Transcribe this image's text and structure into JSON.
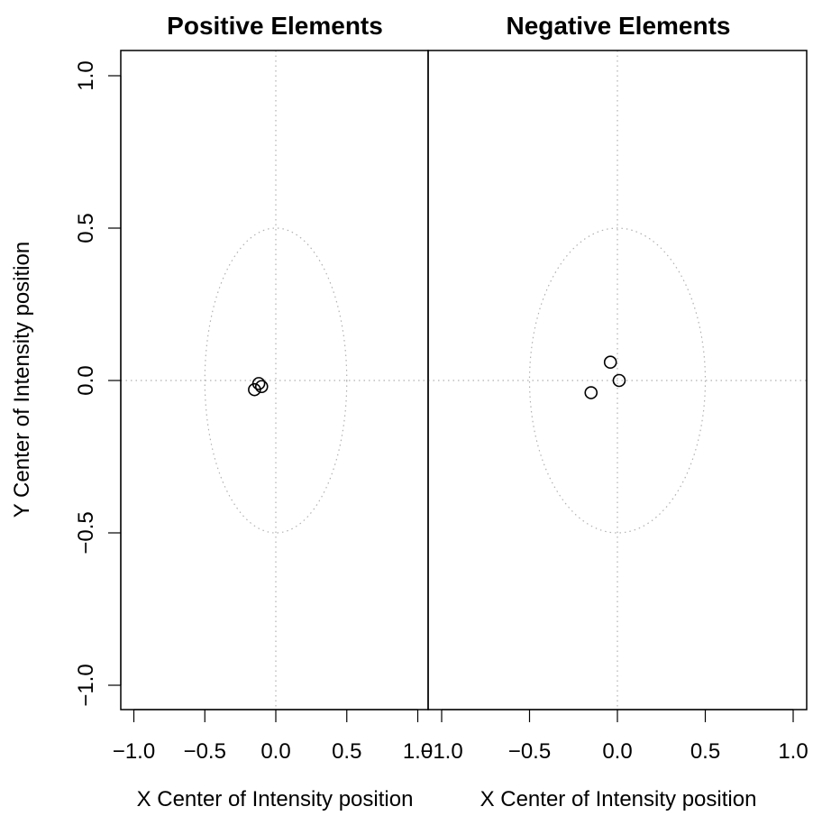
{
  "chart_data": [
    {
      "type": "scatter",
      "title": "Positive Elements",
      "xlabel": "X Center of Intensity position",
      "ylabel": "Y Center of Intensity position",
      "xlim": [
        -1.08,
        1.08
      ],
      "ylim": [
        -1.08,
        1.08
      ],
      "xticks": [
        -1.0,
        -0.5,
        0.0,
        0.5,
        1.0
      ],
      "xtick_labels": [
        "−1.0",
        "−0.5",
        "0.0",
        "0.5",
        "1.0"
      ],
      "yticks": [
        -1.0,
        -0.5,
        0.0,
        0.5,
        1.0
      ],
      "ytick_labels": [
        "−1.0",
        "−0.5",
        "0.0",
        "0.5",
        "1.0"
      ],
      "reference": {
        "hline": 0,
        "vline": 0,
        "ellipse": {
          "cx": 0,
          "cy": 0,
          "rx": 0.5,
          "ry": 0.5
        }
      },
      "points": [
        {
          "x": -0.15,
          "y": -0.03
        },
        {
          "x": -0.12,
          "y": -0.01
        },
        {
          "x": -0.1,
          "y": -0.02
        }
      ]
    },
    {
      "type": "scatter",
      "title": "Negative Elements",
      "xlabel": "X Center of Intensity position",
      "ylabel": "",
      "xlim": [
        -1.08,
        1.08
      ],
      "ylim": [
        -1.08,
        1.08
      ],
      "xticks": [
        -1.0,
        -0.5,
        0.0,
        0.5,
        1.0
      ],
      "xtick_labels": [
        "−1.0",
        "−0.5",
        "0.0",
        "0.5",
        "1.0"
      ],
      "yticks": [],
      "ytick_labels": [],
      "reference": {
        "hline": 0,
        "vline": 0,
        "ellipse": {
          "cx": 0,
          "cy": 0,
          "rx": 0.5,
          "ry": 0.5
        }
      },
      "points": [
        {
          "x": -0.04,
          "y": 0.06
        },
        {
          "x": 0.01,
          "y": 0.0
        },
        {
          "x": -0.15,
          "y": -0.04
        }
      ]
    }
  ]
}
